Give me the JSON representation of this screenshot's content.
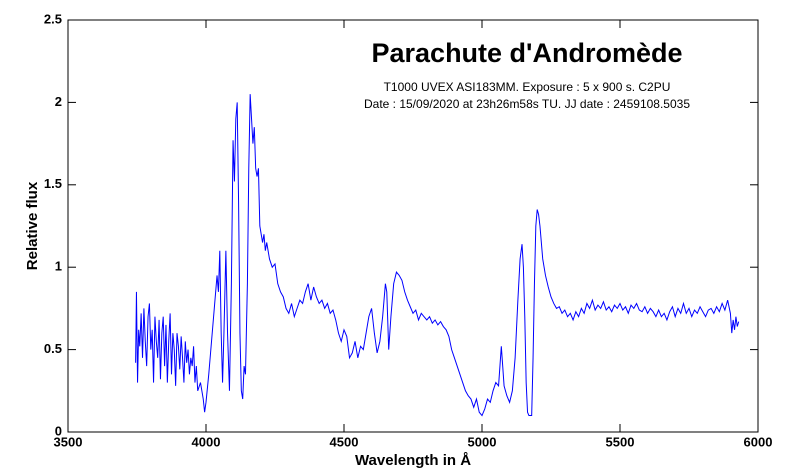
{
  "chart_data": {
    "type": "line",
    "title": "Parachute  d'Andromède",
    "subtitle": [
      "T1000 UVEX ASI183MM. Exposure : 5 x 900 s. C2PU",
      "Date : 15/09/2020 at 23h26m58s TU. JJ date : 2459108.5035"
    ],
    "x_label": "Wavelength in Å",
    "y_label": "Relative flux",
    "xlim": [
      3500,
      6000
    ],
    "xticks": [
      3500,
      4000,
      4500,
      5000,
      5500,
      6000
    ],
    "ylim": [
      0,
      2.5
    ],
    "yticks": [
      0,
      0.5,
      1,
      1.5,
      2,
      2.5
    ],
    "grid": false,
    "color": "#0000ff",
    "x": [
      3745,
      3748,
      3752,
      3756,
      3760,
      3765,
      3770,
      3775,
      3780,
      3785,
      3790,
      3795,
      3800,
      3805,
      3810,
      3815,
      3820,
      3825,
      3830,
      3835,
      3840,
      3845,
      3850,
      3855,
      3860,
      3865,
      3870,
      3875,
      3880,
      3885,
      3890,
      3895,
      3900,
      3905,
      3910,
      3915,
      3920,
      3925,
      3930,
      3935,
      3940,
      3945,
      3950,
      3955,
      3960,
      3965,
      3970,
      3980,
      3990,
      3995,
      4000,
      4010,
      4020,
      4030,
      4040,
      4045,
      4050,
      4055,
      4060,
      4065,
      4072,
      4078,
      4085,
      4092,
      4098,
      4103,
      4108,
      4113,
      4118,
      4123,
      4128,
      4133,
      4138,
      4143,
      4150,
      4155,
      4160,
      4165,
      4170,
      4175,
      4180,
      4185,
      4190,
      4195,
      4200,
      4205,
      4210,
      4215,
      4220,
      4230,
      4240,
      4250,
      4260,
      4270,
      4280,
      4290,
      4300,
      4310,
      4320,
      4330,
      4340,
      4350,
      4360,
      4370,
      4380,
      4390,
      4400,
      4410,
      4420,
      4430,
      4440,
      4450,
      4460,
      4470,
      4480,
      4490,
      4500,
      4510,
      4520,
      4530,
      4540,
      4550,
      4560,
      4570,
      4580,
      4590,
      4600,
      4610,
      4620,
      4630,
      4640,
      4650,
      4655,
      4662,
      4670,
      4680,
      4690,
      4700,
      4710,
      4720,
      4730,
      4740,
      4750,
      4760,
      4770,
      4780,
      4790,
      4800,
      4810,
      4820,
      4830,
      4840,
      4850,
      4860,
      4870,
      4880,
      4890,
      4900,
      4910,
      4920,
      4930,
      4940,
      4950,
      4960,
      4970,
      4980,
      4990,
      5000,
      5010,
      5020,
      5030,
      5040,
      5050,
      5060,
      5065,
      5070,
      5075,
      5080,
      5090,
      5100,
      5110,
      5120,
      5130,
      5138,
      5145,
      5150,
      5155,
      5160,
      5165,
      5170,
      5180,
      5185,
      5190,
      5195,
      5200,
      5205,
      5210,
      5220,
      5230,
      5240,
      5250,
      5260,
      5270,
      5280,
      5290,
      5300,
      5310,
      5320,
      5330,
      5340,
      5350,
      5360,
      5370,
      5380,
      5390,
      5400,
      5410,
      5420,
      5430,
      5440,
      5450,
      5460,
      5470,
      5480,
      5490,
      5500,
      5510,
      5520,
      5530,
      5540,
      5550,
      5560,
      5570,
      5580,
      5590,
      5600,
      5610,
      5620,
      5630,
      5640,
      5650,
      5660,
      5670,
      5680,
      5690,
      5700,
      5710,
      5720,
      5730,
      5740,
      5750,
      5760,
      5770,
      5780,
      5790,
      5800,
      5810,
      5820,
      5830,
      5840,
      5850,
      5860,
      5870,
      5880,
      5890,
      5900,
      5905,
      5910,
      5915,
      5920,
      5925,
      5930
    ],
    "values": [
      0.42,
      0.85,
      0.3,
      0.62,
      0.52,
      0.72,
      0.45,
      0.75,
      0.55,
      0.4,
      0.7,
      0.78,
      0.5,
      0.62,
      0.3,
      0.7,
      0.55,
      0.45,
      0.68,
      0.32,
      0.6,
      0.7,
      0.4,
      0.65,
      0.3,
      0.55,
      0.72,
      0.35,
      0.6,
      0.5,
      0.28,
      0.6,
      0.52,
      0.38,
      0.58,
      0.45,
      0.3,
      0.55,
      0.42,
      0.5,
      0.35,
      0.45,
      0.4,
      0.52,
      0.3,
      0.4,
      0.25,
      0.3,
      0.2,
      0.12,
      0.18,
      0.35,
      0.55,
      0.75,
      0.95,
      0.85,
      1.1,
      0.6,
      0.3,
      0.6,
      1.1,
      0.6,
      0.25,
      0.9,
      1.77,
      1.52,
      1.9,
      2.0,
      1.4,
      0.6,
      0.25,
      0.2,
      0.4,
      0.35,
      0.9,
      1.6,
      2.05,
      1.9,
      1.75,
      1.85,
      1.6,
      1.55,
      1.6,
      1.25,
      1.2,
      1.15,
      1.2,
      1.1,
      1.15,
      1.05,
      1.0,
      1.02,
      0.9,
      0.85,
      0.82,
      0.75,
      0.72,
      0.78,
      0.7,
      0.75,
      0.8,
      0.78,
      0.85,
      0.9,
      0.8,
      0.88,
      0.82,
      0.78,
      0.8,
      0.75,
      0.78,
      0.72,
      0.74,
      0.68,
      0.6,
      0.55,
      0.62,
      0.58,
      0.45,
      0.48,
      0.55,
      0.45,
      0.52,
      0.5,
      0.6,
      0.7,
      0.75,
      0.6,
      0.48,
      0.55,
      0.7,
      0.9,
      0.85,
      0.5,
      0.7,
      0.9,
      0.97,
      0.95,
      0.92,
      0.85,
      0.8,
      0.76,
      0.72,
      0.74,
      0.68,
      0.72,
      0.7,
      0.68,
      0.7,
      0.66,
      0.68,
      0.65,
      0.67,
      0.64,
      0.62,
      0.58,
      0.5,
      0.45,
      0.4,
      0.35,
      0.3,
      0.25,
      0.22,
      0.2,
      0.15,
      0.2,
      0.12,
      0.1,
      0.14,
      0.2,
      0.18,
      0.25,
      0.3,
      0.28,
      0.4,
      0.52,
      0.4,
      0.28,
      0.22,
      0.18,
      0.25,
      0.45,
      0.8,
      1.05,
      1.14,
      1.0,
      0.7,
      0.3,
      0.12,
      0.1,
      0.1,
      0.45,
      0.9,
      1.25,
      1.35,
      1.32,
      1.25,
      1.05,
      0.95,
      0.88,
      0.82,
      0.78,
      0.75,
      0.76,
      0.72,
      0.74,
      0.7,
      0.72,
      0.68,
      0.73,
      0.7,
      0.75,
      0.72,
      0.78,
      0.75,
      0.8,
      0.74,
      0.77,
      0.75,
      0.79,
      0.74,
      0.76,
      0.73,
      0.77,
      0.75,
      0.78,
      0.74,
      0.76,
      0.72,
      0.77,
      0.75,
      0.78,
      0.74,
      0.73,
      0.76,
      0.72,
      0.75,
      0.73,
      0.7,
      0.74,
      0.7,
      0.72,
      0.68,
      0.73,
      0.76,
      0.7,
      0.75,
      0.72,
      0.78,
      0.72,
      0.75,
      0.7,
      0.74,
      0.72,
      0.76,
      0.73,
      0.7,
      0.74,
      0.75,
      0.72,
      0.76,
      0.73,
      0.78,
      0.74,
      0.8,
      0.72,
      0.6,
      0.68,
      0.62,
      0.7,
      0.64,
      0.67
    ]
  }
}
